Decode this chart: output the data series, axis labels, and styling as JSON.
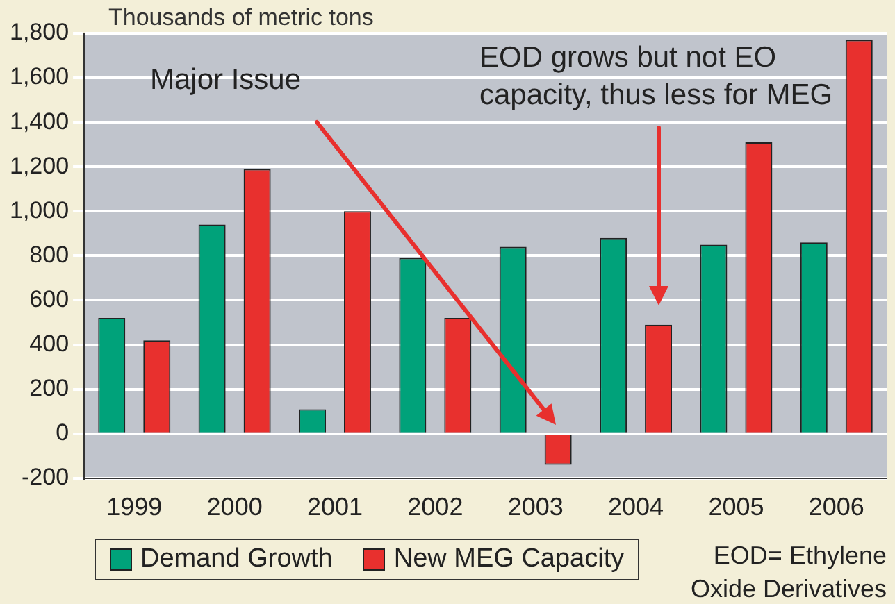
{
  "chart_data": {
    "type": "bar",
    "ylabel": "Thousands of metric tons",
    "categories": [
      "1999",
      "2000",
      "2001",
      "2002",
      "2003",
      "2004",
      "2005",
      "2006"
    ],
    "series": [
      {
        "name": "Demand Growth",
        "color": "#00a27a",
        "values": [
          520,
          940,
          110,
          790,
          840,
          880,
          850,
          860
        ]
      },
      {
        "name": "New MEG Capacity",
        "color": "#e8302e",
        "values": [
          420,
          1190,
          1000,
          520,
          -140,
          490,
          1310,
          1770
        ]
      }
    ],
    "ylim": [
      -200,
      1800
    ],
    "yticks": [
      -200,
      0,
      200,
      400,
      600,
      800,
      {
        "value": 1000,
        "label": "1,000"
      },
      {
        "value": 1200,
        "label": "1,200"
      },
      {
        "value": 1400,
        "label": "1,400"
      },
      {
        "value": 1600,
        "label": "1,600"
      },
      {
        "value": 1800,
        "label": "1,800"
      }
    ],
    "grid": "y",
    "legend": "bottom",
    "annotations": [
      "Major Issue",
      "EOD grows but not EO capacity, thus less for MEG",
      "EOD= Ethylene Oxide Derivatives"
    ]
  }
}
